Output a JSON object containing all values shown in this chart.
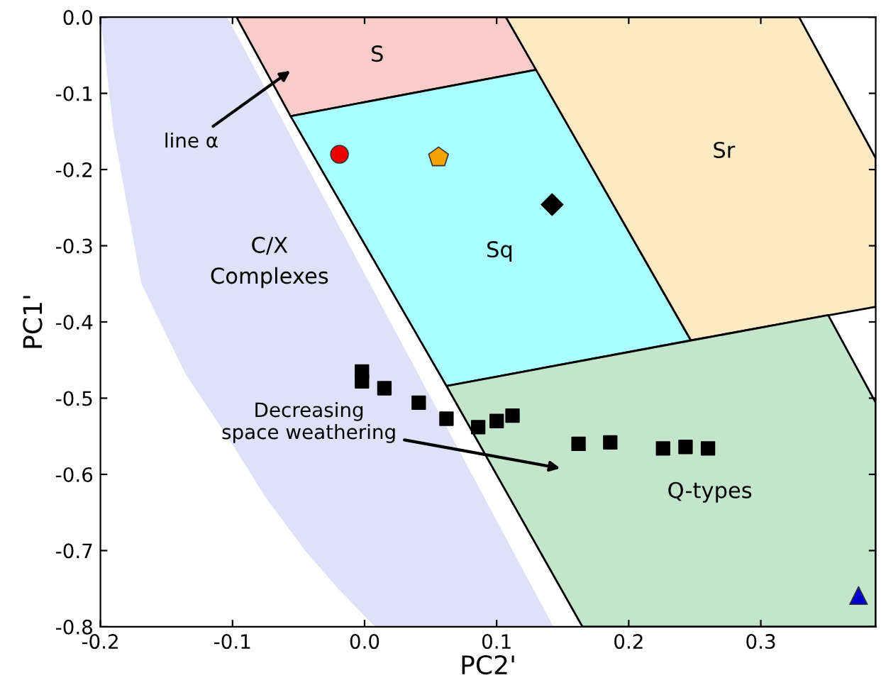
{
  "chart_data": {
    "type": "scatter",
    "xlabel": "PC2'",
    "ylabel": "PC1'",
    "xlim": [
      -0.2,
      0.387
    ],
    "ylim": [
      -0.8,
      0.0
    ],
    "xticks": [
      -0.2,
      -0.1,
      {
        "value": 0,
        "label": "0.0"
      },
      0.1,
      0.2,
      0.3
    ],
    "yticks": [
      -0.8,
      -0.7,
      -0.6,
      -0.5,
      -0.4,
      -0.3,
      -0.2,
      -0.1,
      {
        "value": 0,
        "label": "0.0"
      }
    ],
    "grid": false,
    "legend": false,
    "series": [
      {
        "type": "area",
        "color": "#e0e0f8",
        "x": [
          -0.2,
          -0.19,
          -0.169,
          -0.135,
          -0.104,
          -0.075,
          -0.045,
          -0.02,
          0.008,
          0.143,
          -0.104,
          -0.17,
          -0.2
        ],
        "values": [
          0.0,
          -0.15,
          -0.35,
          -0.47,
          -0.55,
          -0.63,
          -0.7,
          -0.75,
          -0.8,
          -0.8,
          0.0,
          0.0,
          0.0
        ]
      },
      {
        "type": "area",
        "color": "#f9cccc",
        "line_style": "solid",
        "x": [
          -0.097,
          0.107,
          0.13,
          -0.056
        ],
        "values": [
          0.0,
          0.0,
          -0.069,
          -0.13
        ]
      },
      {
        "type": "area",
        "color": "#aaffff",
        "line_style": "solid",
        "x": [
          -0.056,
          0.13,
          0.247,
          0.062
        ],
        "values": [
          -0.13,
          -0.069,
          -0.424,
          -0.484
        ]
      },
      {
        "type": "area",
        "color": "#fde9c4",
        "line_style": "solid",
        "x": [
          0.107,
          0.329,
          0.387,
          0.387,
          0.247
        ],
        "values": [
          0.0,
          0.0,
          -0.185,
          -0.38,
          -0.424
        ]
      },
      {
        "type": "area",
        "color": "#c2e5cb",
        "line_style": "solid",
        "x": [
          0.062,
          0.351,
          0.387,
          0.387,
          0.165
        ],
        "values": [
          -0.484,
          -0.391,
          -0.506,
          -0.8,
          -0.8
        ]
      },
      {
        "marker": "square",
        "color": "#000000",
        "x": [
          -0.002,
          -0.002,
          0.015,
          0.041,
          0.062,
          0.086,
          0.1,
          0.112,
          0.162,
          0.186,
          0.226,
          0.243,
          0.26
        ],
        "values": [
          -0.465,
          -0.478,
          -0.487,
          -0.506,
          -0.527,
          -0.538,
          -0.53,
          -0.523,
          -0.56,
          -0.558,
          -0.566,
          -0.564,
          -0.566
        ]
      },
      {
        "marker": "circle",
        "color": "#ee0000",
        "x": [
          -0.019
        ],
        "values": [
          -0.18
        ]
      },
      {
        "color": "#f5a100",
        "x": [
          0.056
        ],
        "values": [
          -0.184
        ]
      },
      {
        "marker": "diamond",
        "color": "#000000",
        "x": [
          0.142
        ],
        "values": [
          -0.246
        ]
      },
      {
        "marker": "triangle",
        "color": "#0000cc",
        "x": [
          0.374
        ],
        "values": [
          -0.759
        ]
      }
    ],
    "annotations": [
      "S",
      "Sr",
      "Sq",
      "C/X\nComplexes",
      "Q-types",
      "line α",
      "Decreasing\nspace weathering"
    ]
  }
}
